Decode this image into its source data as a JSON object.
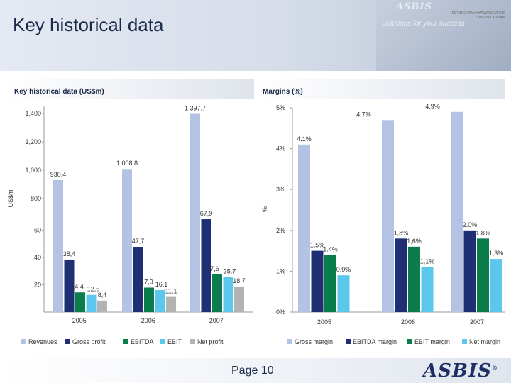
{
  "header": {
    "title": "Key historical data",
    "brand": "ASBIS",
    "slogan": "Solutions for your success",
    "meta_line1": "EDT/NGV/WeryW/FW/2007/07/29",
    "meta_line2": "6/18/2018 8:28 AM"
  },
  "footer": {
    "page_label": "Page 10",
    "logo": "ASBIS",
    "logo_mark": "®"
  },
  "chart_data": [
    {
      "type": "bar",
      "title": "Key historical data (US$m)",
      "ylabel": "US$m",
      "categories": [
        "2005",
        "2006",
        "2007"
      ],
      "series": [
        {
          "name": "Revenues",
          "values": [
            930.4,
            1008.8,
            1397.7
          ],
          "labels": [
            "930.4",
            "1,008.8",
            "1,397.7"
          ],
          "color": "#b4c3e3"
        },
        {
          "name": "Gross profit",
          "values": [
            38.4,
            47.7,
            67.9
          ],
          "labels": [
            "38,4",
            "47,7",
            "67,9"
          ],
          "color": "#1f2f73"
        },
        {
          "name": "EBITDA",
          "values": [
            14.4,
            17.9,
            27.6
          ],
          "labels": [
            "14,4",
            "17,9",
            "27,6"
          ],
          "color": "#0b7d4d"
        },
        {
          "name": "EBIT",
          "values": [
            12.6,
            16.1,
            25.7
          ],
          "labels": [
            "12,6",
            "16,1",
            "25,7"
          ],
          "color": "#5bc7ea"
        },
        {
          "name": "Net profit",
          "values": [
            8.4,
            11.1,
            18.7
          ],
          "labels": [
            "8,4",
            "11,1",
            "18,7"
          ],
          "color": "#b3b3b3"
        }
      ],
      "y_ticks": [
        "1,400",
        "1,200",
        "1,000",
        "800",
        "60",
        "40",
        "20"
      ],
      "axis_break": "between 800 and 60",
      "legend_position": "bottom"
    },
    {
      "type": "bar",
      "title": "Margins (%)",
      "ylabel": "%",
      "categories": [
        "2005",
        "2006",
        "2007"
      ],
      "series": [
        {
          "name": "Gross margin",
          "values": [
            4.1,
            4.7,
            4.9
          ],
          "labels": [
            "4.1%",
            "4,7%",
            "4,9%"
          ],
          "color": "#b4c3e3"
        },
        {
          "name": "EBITDA margin",
          "values": [
            1.5,
            1.8,
            2.0
          ],
          "labels": [
            "1,5%",
            "1,8%",
            "2.0%"
          ],
          "color": "#1f2f73"
        },
        {
          "name": "EBIT margin",
          "values": [
            1.4,
            1.6,
            1.8
          ],
          "labels": [
            "1.4%",
            "1,6%",
            "1,8%"
          ],
          "color": "#0b7d4d"
        },
        {
          "name": "Net margin",
          "values": [
            0.9,
            1.1,
            1.3
          ],
          "labels": [
            "0.9%",
            "1,1%",
            "1,3%"
          ],
          "color": "#5bc7ea"
        }
      ],
      "y_ticks": [
        "5%",
        "4%",
        "3%",
        "2%",
        "1%",
        "0%"
      ],
      "ylim": [
        0,
        5
      ],
      "legend_position": "bottom"
    }
  ]
}
